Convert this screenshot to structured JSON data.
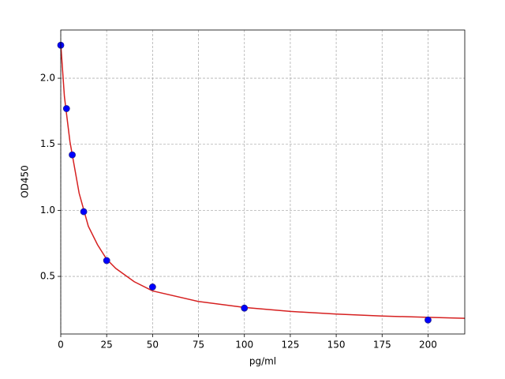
{
  "chart_data": {
    "type": "scatter",
    "xlabel": "pg/ml",
    "ylabel": "OD450",
    "points": {
      "color": "#0000ff",
      "x": [
        0,
        3.125,
        6.25,
        12.5,
        25,
        50,
        100,
        200
      ],
      "y": [
        2.25,
        1.77,
        1.42,
        0.99,
        0.62,
        0.42,
        0.26,
        0.17
      ]
    },
    "curve": {
      "color": "#d62020",
      "x": [
        0,
        2,
        5,
        10,
        15,
        20,
        25,
        30,
        40,
        50,
        75,
        100,
        125,
        150,
        175,
        200,
        220
      ],
      "y": [
        2.26,
        1.86,
        1.52,
        1.13,
        0.88,
        0.74,
        0.63,
        0.56,
        0.46,
        0.39,
        0.31,
        0.265,
        0.235,
        0.215,
        0.2,
        0.19,
        0.183
      ]
    },
    "xlim": [
      0,
      220
    ],
    "ylim": [
      0.064,
      2.365
    ],
    "xticks": [
      0,
      25,
      50,
      75,
      100,
      125,
      150,
      175,
      200
    ],
    "yticks": [
      0.5,
      {
        "value": 1,
        "label": "1.0"
      },
      1.5,
      {
        "value": 2,
        "label": "2.0"
      }
    ],
    "grid": true
  }
}
